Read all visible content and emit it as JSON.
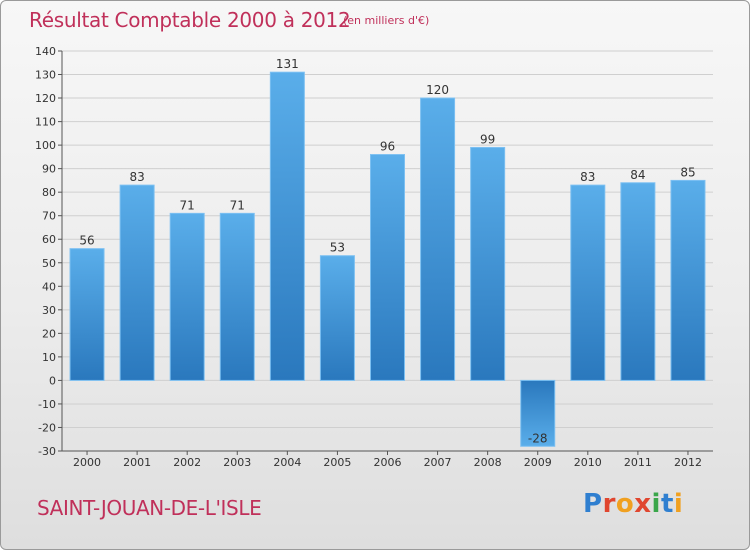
{
  "title": "Résultat Comptable 2000 à 2012",
  "subtitle": "(en milliers d'€)",
  "commune": "SAINT-JOUAN-DE-L'ISLE",
  "brand": {
    "p": "P",
    "r": "r",
    "o": "o",
    "x": "x",
    "i1": "i",
    "t": "t",
    "i2": "i"
  },
  "colors": {
    "bar": "#4a9fe0",
    "bar_dark": "#2a78bd",
    "title": "#c0305a"
  },
  "chart_data": {
    "type": "bar",
    "title": "Résultat Comptable 2000 à 2012",
    "subtitle": "(en milliers d'€)",
    "categories": [
      "2000",
      "2001",
      "2002",
      "2003",
      "2004",
      "2005",
      "2006",
      "2007",
      "2008",
      "2009",
      "2010",
      "2011",
      "2012"
    ],
    "values": [
      56,
      83,
      71,
      71,
      131,
      53,
      96,
      120,
      99,
      -28,
      83,
      84,
      85
    ],
    "value_labels": [
      "56",
      "83",
      "71",
      "71",
      "131",
      "53",
      "96",
      "120",
      "99",
      "-28",
      "83",
      "84",
      "85"
    ],
    "ylim": [
      -30,
      140
    ],
    "yticks": [
      -30,
      -20,
      -10,
      0,
      10,
      20,
      30,
      40,
      50,
      60,
      70,
      80,
      90,
      100,
      110,
      120,
      130,
      140
    ],
    "ytick_labels": [
      "-30",
      "-20",
      "-10",
      "0",
      "10",
      "20",
      "30",
      "40",
      "50",
      "60",
      "70",
      "80",
      "90",
      "100",
      "110",
      "120",
      "130",
      "140"
    ],
    "grid": true,
    "xlabel": "",
    "ylabel": ""
  }
}
